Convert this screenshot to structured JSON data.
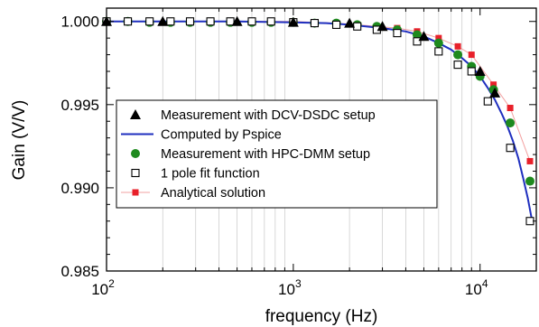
{
  "chart_data": {
    "type": "scatter",
    "xlabel": "frequency (Hz)",
    "ylabel": "Gain (V/V)",
    "xscale": "log",
    "xlim": [
      100,
      20000
    ],
    "ylim": [
      0.985,
      1.0008
    ],
    "x_ticks": [
      {
        "value": 100,
        "base": "10",
        "exp": "2"
      },
      {
        "value": 1000,
        "base": "10",
        "exp": "3"
      },
      {
        "value": 10000,
        "base": "10",
        "exp": "4"
      }
    ],
    "y_ticks": [
      {
        "value": 0.985,
        "label": "0.985"
      },
      {
        "value": 0.99,
        "label": "0.990"
      },
      {
        "value": 0.995,
        "label": "0.995"
      },
      {
        "value": 1.0,
        "label": "1.000"
      }
    ],
    "grid": true,
    "legend_position": "left-center",
    "series": [
      {
        "name": "Measurement with DCV-DSDC setup",
        "marker": "triangle",
        "color": "#000000",
        "x": [
          100,
          200,
          500,
          1000,
          2000,
          3000,
          5000,
          10000,
          12000
        ],
        "y": [
          1.0,
          1.0,
          1.0,
          0.99995,
          0.9999,
          0.9997,
          0.9991,
          0.997,
          0.9957
        ]
      },
      {
        "name": "Computed by Pspice",
        "marker": "line",
        "color": "#1f2fbf",
        "x": [
          100,
          200,
          500,
          1000,
          1500,
          2000,
          3000,
          4000,
          5000,
          6000,
          7000,
          8000,
          9000,
          10000,
          11000,
          12000,
          13000,
          14000,
          15000,
          16000,
          17000,
          18000,
          19000
        ],
        "y": [
          1.0,
          1.0,
          1.0,
          0.99995,
          0.9999,
          0.9998,
          0.9996,
          0.9994,
          0.9991,
          0.9987,
          0.9983,
          0.9978,
          0.9973,
          0.9967,
          0.996,
          0.9953,
          0.9945,
          0.9937,
          0.9928,
          0.9918,
          0.9906,
          0.9894,
          0.988
        ]
      },
      {
        "name": "Measurement with HPC-DMM setup",
        "marker": "circle",
        "color": "#1e8a1e",
        "x": [
          100,
          130,
          170,
          220,
          280,
          360,
          460,
          600,
          760,
          1000,
          1300,
          1700,
          2200,
          2800,
          3600,
          4600,
          6000,
          7600,
          9000,
          10000,
          11800,
          14500,
          18500
        ],
        "y": [
          1.0,
          1.0,
          0.99995,
          0.99995,
          0.99995,
          0.99995,
          0.99995,
          0.99995,
          0.99995,
          0.99995,
          0.9999,
          0.9999,
          0.9998,
          0.9997,
          0.9995,
          0.9992,
          0.9987,
          0.998,
          0.9973,
          0.9967,
          0.9959,
          0.9939,
          0.9904
        ]
      },
      {
        "name": "1 pole fit function",
        "marker": "square-open",
        "color": "#000000",
        "x": [
          100,
          130,
          170,
          220,
          280,
          360,
          460,
          600,
          760,
          1000,
          1300,
          1700,
          2200,
          2800,
          3600,
          4600,
          6000,
          7600,
          9000,
          11000,
          14500,
          18500
        ],
        "y": [
          1.0,
          1.0,
          1.0,
          1.0,
          1.0,
          1.0,
          1.0,
          1.0,
          1.0,
          0.99995,
          0.9999,
          0.9998,
          0.9997,
          0.9995,
          0.9993,
          0.9988,
          0.9982,
          0.9974,
          0.997,
          0.9952,
          0.9924,
          0.988
        ]
      },
      {
        "name": "Analytical solution",
        "marker": "square-filled",
        "color": "#e8202a",
        "x": [
          100,
          130,
          170,
          220,
          280,
          360,
          460,
          600,
          760,
          1000,
          1300,
          1700,
          2200,
          2800,
          3600,
          4600,
          6000,
          7600,
          9000,
          11800,
          14500,
          18500
        ],
        "y": [
          1.0,
          1.0,
          1.0,
          1.0,
          1.0,
          1.0,
          1.0,
          1.0,
          1.0,
          1.0,
          0.99995,
          0.9999,
          0.9998,
          0.9997,
          0.9996,
          0.9994,
          0.999,
          0.9985,
          0.998,
          0.9962,
          0.9948,
          0.9916
        ]
      }
    ]
  }
}
